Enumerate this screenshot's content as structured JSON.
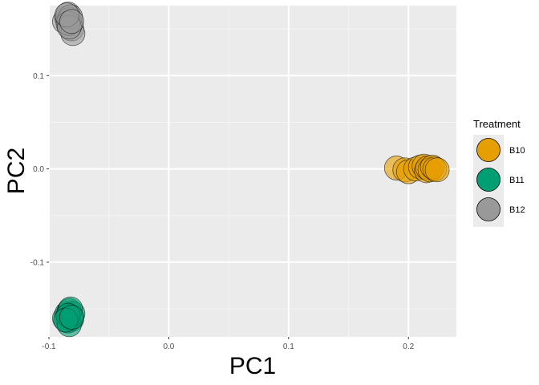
{
  "chart_data": {
    "type": "scatter",
    "xlabel": "PC1",
    "ylabel": "PC2",
    "xlim": [
      -0.1,
      0.24
    ],
    "ylim": [
      -0.18,
      0.175
    ],
    "x_ticks": [
      -0.1,
      0.0,
      0.1,
      0.2
    ],
    "x_tick_labels": [
      "-0.1",
      "0.0",
      "0.1",
      "0.2"
    ],
    "y_ticks": [
      -0.1,
      0.0,
      0.1
    ],
    "y_tick_labels": [
      "-0.1",
      "0.0",
      "0.1"
    ],
    "grid": true,
    "legend": {
      "title": "Treatment",
      "position": "right"
    },
    "series": [
      {
        "name": "B10",
        "color": "#E69F00",
        "points": [
          {
            "x": 0.19,
            "y": 0.001
          },
          {
            "x": 0.197,
            "y": -0.001
          },
          {
            "x": 0.2,
            "y": -0.003
          },
          {
            "x": 0.206,
            "y": 0.0
          },
          {
            "x": 0.21,
            "y": 0.002
          },
          {
            "x": 0.213,
            "y": 0.003
          },
          {
            "x": 0.215,
            "y": -0.002
          },
          {
            "x": 0.216,
            "y": 0.001
          },
          {
            "x": 0.218,
            "y": -0.001
          },
          {
            "x": 0.22,
            "y": 0.002
          },
          {
            "x": 0.222,
            "y": 0.0
          },
          {
            "x": 0.224,
            "y": -0.001
          }
        ]
      },
      {
        "name": "B11",
        "color": "#009E73",
        "points": [
          {
            "x": -0.087,
            "y": -0.16
          },
          {
            "x": -0.085,
            "y": -0.155
          },
          {
            "x": -0.084,
            "y": -0.163
          },
          {
            "x": -0.083,
            "y": -0.152
          },
          {
            "x": -0.082,
            "y": -0.158
          },
          {
            "x": -0.081,
            "y": -0.161
          },
          {
            "x": -0.083,
            "y": -0.167
          },
          {
            "x": -0.08,
            "y": -0.155
          },
          {
            "x": -0.082,
            "y": -0.15
          },
          {
            "x": -0.084,
            "y": -0.157
          },
          {
            "x": -0.086,
            "y": -0.162
          },
          {
            "x": -0.081,
            "y": -0.159
          }
        ]
      },
      {
        "name": "B12",
        "color": "#999999",
        "points": [
          {
            "x": -0.087,
            "y": 0.158
          },
          {
            "x": -0.085,
            "y": 0.162
          },
          {
            "x": -0.084,
            "y": 0.166
          },
          {
            "x": -0.083,
            "y": 0.16
          },
          {
            "x": -0.082,
            "y": 0.155
          },
          {
            "x": -0.081,
            "y": 0.15
          },
          {
            "x": -0.08,
            "y": 0.145
          },
          {
            "x": -0.082,
            "y": 0.163
          },
          {
            "x": -0.084,
            "y": 0.156
          },
          {
            "x": -0.083,
            "y": 0.152
          },
          {
            "x": -0.085,
            "y": 0.165
          },
          {
            "x": -0.081,
            "y": 0.158
          }
        ]
      }
    ]
  }
}
